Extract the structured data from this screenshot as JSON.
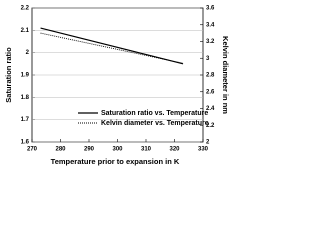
{
  "chart_data": {
    "type": "line",
    "xlabel": "Temperature prior to expansion in K",
    "ylabel": "Saturation ratio",
    "y2label": "Kelvin diameter in nm",
    "x": [
      273,
      323
    ],
    "series": [
      {
        "name": "Saturation ratio vs. Temperature",
        "color": "#000000",
        "dash": "solid",
        "values": [
          2.11,
          1.95
        ]
      },
      {
        "name": "Kelvin diameter vs. Temperature",
        "color": "#000000",
        "dash": "dotted",
        "axis": "y2",
        "values": [
          3.3,
          2.94
        ]
      }
    ],
    "xlim": [
      270,
      330
    ],
    "xticks": [
      270,
      280,
      290,
      300,
      310,
      320,
      330
    ],
    "ylim": [
      1.6,
      2.2
    ],
    "yticks": [
      1.6,
      1.7,
      1.8,
      1.9,
      2.0,
      2.1,
      2.2
    ],
    "y2lim": [
      2.0,
      3.6
    ],
    "y2ticks": [
      2.0,
      2.2,
      2.4,
      2.6,
      2.8,
      3.0,
      3.2,
      3.4,
      3.6
    ],
    "grid": true,
    "legend": "lower right"
  }
}
